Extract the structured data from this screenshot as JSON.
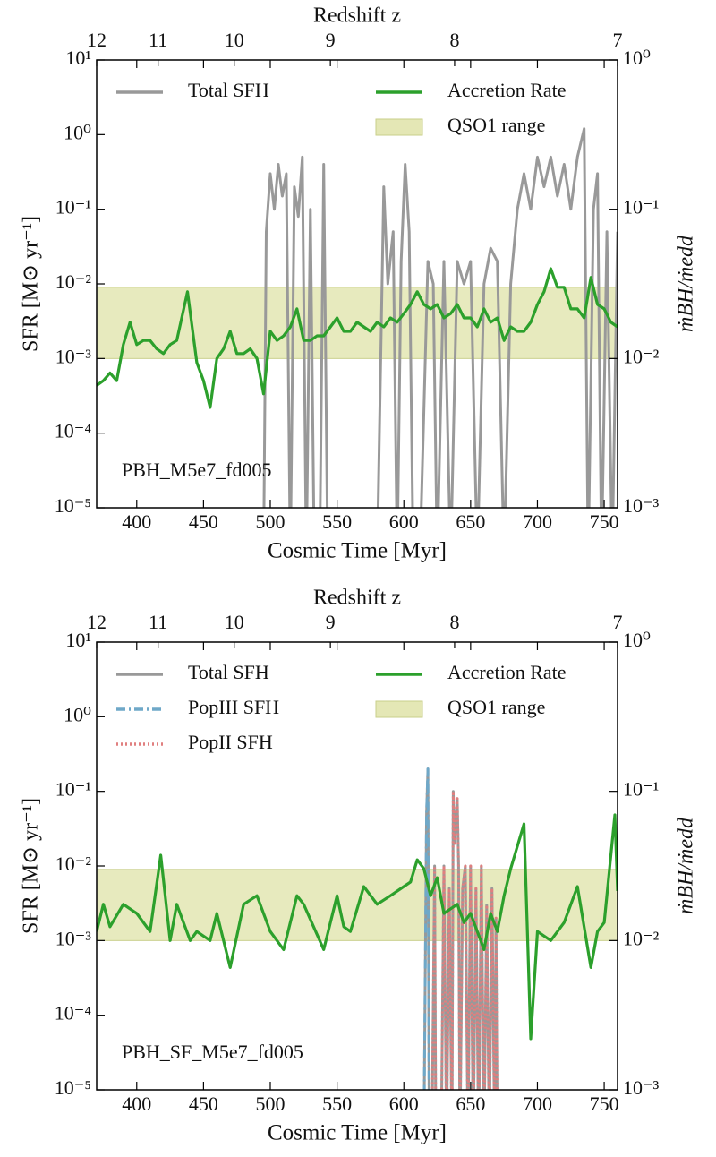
{
  "chart_data": [
    {
      "type": "line",
      "x_label": "Cosmic Time [Myr]",
      "x2_label": "Redshift z",
      "y_label": "SFR  [M⊙ yr⁻¹]",
      "y2_label": "ṁBH/ṁedd",
      "annotation": "PBH_M5e7_fd005",
      "xlim": [
        370,
        760
      ],
      "xticks": [
        400,
        450,
        500,
        550,
        600,
        650,
        700,
        750
      ],
      "x2ticks": [
        {
          "value": 370,
          "label": "12"
        },
        {
          "value": 416,
          "label": "11"
        },
        {
          "value": 473,
          "label": "10"
        },
        {
          "value": 545,
          "label": "9"
        },
        {
          "value": 638,
          "label": "8"
        },
        {
          "value": 760,
          "label": "7"
        }
      ],
      "yscale": "log",
      "ylim": [
        1e-05,
        10
      ],
      "yticks": [
        {
          "value": 1e-05,
          "label": "10⁻⁵"
        },
        {
          "value": 0.0001,
          "label": "10⁻⁴"
        },
        {
          "value": 0.001,
          "label": "10⁻³"
        },
        {
          "value": 0.01,
          "label": "10⁻²"
        },
        {
          "value": 0.1,
          "label": "10⁻¹"
        },
        {
          "value": 1,
          "label": "10⁰"
        },
        {
          "value": 10,
          "label": "10¹"
        }
      ],
      "y2scale": "log",
      "y2lim": [
        0.001,
        1
      ],
      "y2ticks": [
        {
          "value": 0.001,
          "label": "10⁻³"
        },
        {
          "value": 0.01,
          "label": "10⁻²"
        },
        {
          "value": 0.1,
          "label": "10⁻¹"
        },
        {
          "value": 1,
          "label": "10⁰"
        }
      ],
      "band": {
        "name": "QSO1 range",
        "color": "#dfe3a8",
        "axis": "y2",
        "values": [
          0.01,
          0.03
        ]
      },
      "series": [
        {
          "name": "Total SFH",
          "color": "#999999",
          "axis": "y",
          "dash": "solid",
          "x": [
            370,
            490,
            495,
            497,
            500,
            503,
            506,
            509,
            512,
            515,
            518,
            521,
            524,
            527,
            530,
            533,
            537,
            540,
            543,
            580,
            585,
            588,
            592,
            595,
            598,
            601,
            604,
            607,
            612,
            618,
            622,
            625,
            630,
            635,
            640,
            645,
            650,
            655,
            660,
            665,
            670,
            675,
            680,
            685,
            690,
            695,
            700,
            705,
            710,
            715,
            720,
            725,
            730,
            735,
            738,
            742,
            745,
            748,
            752,
            756,
            760
          ],
          "values": [
            0,
            0,
            0,
            0.05,
            0.3,
            0.1,
            0.4,
            0.15,
            0.3,
            0,
            0.2,
            0.08,
            0.5,
            0,
            0.1,
            0,
            0,
            0.4,
            0,
            0,
            0.2,
            0.01,
            0.05,
            0,
            0.02,
            0.4,
            0.05,
            0,
            0,
            0.02,
            0.01,
            0,
            0.02,
            0,
            0.02,
            0.01,
            0.02,
            0,
            0.01,
            0.03,
            0.02,
            0,
            0.01,
            0.1,
            0.3,
            0.1,
            0.5,
            0.2,
            0.5,
            0.15,
            0.4,
            0.1,
            0.5,
            1.2,
            0,
            0.1,
            0.3,
            0,
            0.05,
            0,
            0.05
          ]
        },
        {
          "name": "Accretion Rate",
          "color": "#2ca02c",
          "axis": "y2",
          "dash": "solid",
          "x": [
            370,
            375,
            380,
            385,
            390,
            395,
            400,
            405,
            410,
            415,
            420,
            425,
            430,
            438,
            445,
            450,
            455,
            460,
            465,
            470,
            475,
            480,
            485,
            490,
            495,
            500,
            505,
            510,
            515,
            520,
            525,
            530,
            535,
            540,
            545,
            550,
            555,
            560,
            565,
            570,
            575,
            580,
            585,
            590,
            595,
            600,
            605,
            610,
            615,
            620,
            625,
            630,
            635,
            640,
            645,
            650,
            655,
            660,
            665,
            670,
            675,
            680,
            685,
            690,
            695,
            700,
            705,
            710,
            715,
            720,
            725,
            730,
            735,
            740,
            745,
            750,
            755,
            760
          ],
          "values": [
            0.0066,
            0.0071,
            0.008,
            0.0071,
            0.0124,
            0.0175,
            0.0124,
            0.0132,
            0.0132,
            0.0116,
            0.0108,
            0.0124,
            0.0132,
            0.028,
            0.0094,
            0.0071,
            0.0047,
            0.01,
            0.0116,
            0.0152,
            0.0108,
            0.0108,
            0.0116,
            0.01,
            0.0058,
            0.0152,
            0.0132,
            0.0142,
            0.0163,
            0.0215,
            0.0132,
            0.0132,
            0.0142,
            0.0142,
            0.0163,
            0.0187,
            0.0152,
            0.0152,
            0.0175,
            0.0163,
            0.0152,
            0.0175,
            0.0163,
            0.0187,
            0.0175,
            0.02,
            0.023,
            0.028,
            0.023,
            0.0215,
            0.023,
            0.0187,
            0.02,
            0.023,
            0.0187,
            0.0187,
            0.0163,
            0.0215,
            0.0175,
            0.0187,
            0.0132,
            0.0163,
            0.0152,
            0.0152,
            0.0175,
            0.023,
            0.028,
            0.04,
            0.03,
            0.03,
            0.0215,
            0.0215,
            0.0187,
            0.035,
            0.023,
            0.0215,
            0.0175,
            0.0163
          ]
        }
      ]
    },
    {
      "type": "line",
      "x_label": "Cosmic Time [Myr]",
      "x2_label": "Redshift z",
      "y_label": "SFR  [M⊙ yr⁻¹]",
      "y2_label": "ṁBH/ṁedd",
      "annotation": "PBH_SF_M5e7_fd005",
      "xlim": [
        370,
        760
      ],
      "xticks": [
        400,
        450,
        500,
        550,
        600,
        650,
        700,
        750
      ],
      "x2ticks": [
        {
          "value": 370,
          "label": "12"
        },
        {
          "value": 416,
          "label": "11"
        },
        {
          "value": 473,
          "label": "10"
        },
        {
          "value": 545,
          "label": "9"
        },
        {
          "value": 638,
          "label": "8"
        },
        {
          "value": 760,
          "label": "7"
        }
      ],
      "yscale": "log",
      "ylim": [
        1e-05,
        10
      ],
      "yticks": [
        {
          "value": 1e-05,
          "label": "10⁻⁵"
        },
        {
          "value": 0.0001,
          "label": "10⁻⁴"
        },
        {
          "value": 0.001,
          "label": "10⁻³"
        },
        {
          "value": 0.01,
          "label": "10⁻²"
        },
        {
          "value": 0.1,
          "label": "10⁻¹"
        },
        {
          "value": 1,
          "label": "10⁰"
        },
        {
          "value": 10,
          "label": "10¹"
        }
      ],
      "y2scale": "log",
      "y2lim": [
        0.001,
        1
      ],
      "y2ticks": [
        {
          "value": 0.001,
          "label": "10⁻³"
        },
        {
          "value": 0.01,
          "label": "10⁻²"
        },
        {
          "value": 0.1,
          "label": "10⁻¹"
        },
        {
          "value": 1,
          "label": "10⁰"
        }
      ],
      "band": {
        "name": "QSO1 range",
        "color": "#dfe3a8",
        "axis": "y2",
        "values": [
          0.01,
          0.03
        ]
      },
      "series": [
        {
          "name": "Total SFH",
          "color": "#999999",
          "axis": "y",
          "dash": "solid",
          "x": [
            612,
            615,
            617,
            618,
            619,
            621,
            623,
            624,
            626,
            628,
            630,
            632,
            634,
            636,
            637,
            638,
            640,
            641,
            642,
            644,
            646,
            648,
            650,
            652,
            654,
            656,
            658,
            660,
            662,
            664,
            666,
            668,
            669,
            670,
            672
          ],
          "values": [
            0,
            0,
            0.05,
            0.2,
            0,
            0,
            0.01,
            0,
            0,
            0,
            0.01,
            0,
            0.005,
            0,
            0.1,
            0.02,
            0.08,
            0.01,
            0,
            0.005,
            0.01,
            0,
            0.01,
            0,
            0.005,
            0,
            0.01,
            0,
            0.003,
            0,
            0.005,
            0,
            0.002,
            0,
            0
          ]
        },
        {
          "name": "PopIII SFH",
          "color": "#6fa8c8",
          "axis": "y",
          "dash": "dashdot",
          "x": [
            612,
            615,
            617,
            618,
            619,
            621,
            623,
            624,
            626,
            628,
            630,
            632,
            634,
            636,
            637,
            638,
            640,
            641,
            642,
            644,
            646,
            648,
            650,
            652,
            654,
            656,
            658,
            660,
            662,
            664,
            666,
            668,
            669,
            670,
            672
          ],
          "values": [
            0,
            0,
            0.05,
            0.2,
            0,
            0,
            0,
            0,
            0,
            0,
            0,
            0,
            0,
            0,
            0,
            0,
            0,
            0,
            0,
            0,
            0,
            0,
            0,
            0,
            0,
            0,
            0,
            0,
            0,
            0,
            0,
            0,
            0,
            0,
            0
          ]
        },
        {
          "name": "PopII SFH",
          "color": "#e07f7f",
          "axis": "y",
          "dash": "dotted",
          "x": [
            612,
            615,
            617,
            618,
            619,
            621,
            623,
            624,
            626,
            628,
            630,
            632,
            634,
            636,
            637,
            638,
            640,
            641,
            642,
            644,
            646,
            648,
            650,
            652,
            654,
            656,
            658,
            660,
            662,
            664,
            666,
            668,
            669,
            670,
            672
          ],
          "values": [
            0,
            0,
            0,
            0,
            0,
            0,
            0.01,
            0,
            0,
            0,
            0.01,
            0,
            0.005,
            0,
            0.1,
            0.02,
            0.08,
            0.01,
            0,
            0.005,
            0.01,
            0,
            0.01,
            0,
            0.005,
            0,
            0.01,
            0,
            0.003,
            0,
            0.005,
            0,
            0.002,
            0,
            0
          ]
        },
        {
          "name": "Accretion Rate",
          "color": "#2ca02c",
          "axis": "y2",
          "dash": "solid",
          "x": [
            370,
            375,
            380,
            390,
            400,
            410,
            418,
            425,
            430,
            440,
            445,
            455,
            460,
            470,
            480,
            490,
            500,
            510,
            520,
            525,
            540,
            550,
            555,
            560,
            570,
            580,
            590,
            600,
            605,
            610,
            615,
            620,
            625,
            630,
            640,
            645,
            650,
            655,
            660,
            665,
            670,
            675,
            680,
            690,
            695,
            700,
            710,
            720,
            730,
            740,
            745,
            750,
            758,
            760
          ],
          "values": [
            0.0115,
            0.0175,
            0.0124,
            0.0175,
            0.0152,
            0.0115,
            0.0373,
            0.01,
            0.0175,
            0.01,
            0.0115,
            0.01,
            0.0152,
            0.0066,
            0.0175,
            0.02,
            0.0115,
            0.0087,
            0.02,
            0.0175,
            0.0087,
            0.02,
            0.0124,
            0.0115,
            0.023,
            0.0175,
            0.02,
            0.023,
            0.0247,
            0.0348,
            0.0303,
            0.02,
            0.0264,
            0.0152,
            0.0175,
            0.0132,
            0.0152,
            0.0115,
            0.0087,
            0.0152,
            0.0115,
            0.02,
            0.0303,
            0.0605,
            0.0022,
            0.0115,
            0.01,
            0.0132,
            0.023,
            0.0066,
            0.0115,
            0.0132,
            0.0695,
            0.0215
          ]
        }
      ]
    }
  ]
}
